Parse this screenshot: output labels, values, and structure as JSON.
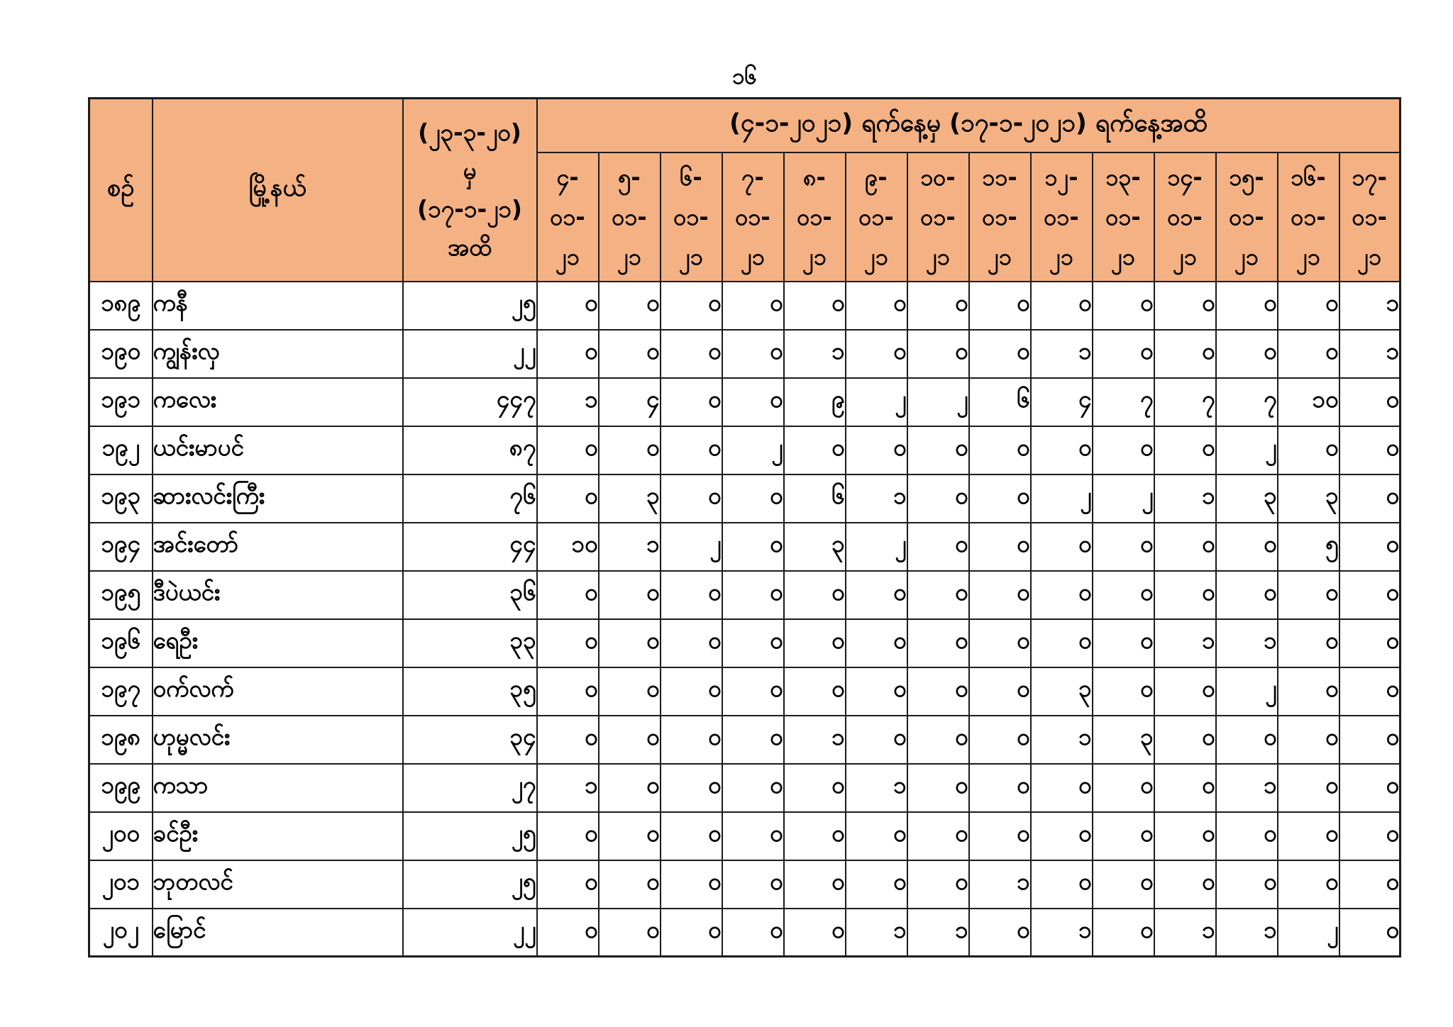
{
  "page": {
    "number": "၁၆"
  },
  "table": {
    "colors": {
      "header_fill": "#F4B183",
      "border": "#1B1B1B",
      "text": "#000000"
    },
    "header": {
      "serial_label": "စဉ်",
      "township_label": "မြို့နယ်",
      "cumulative_lines": [
        "(၂၃-၃-၂၀)",
        "မှ",
        "(၁၇-၁-၂၁)",
        "အထိ"
      ],
      "period_title": "(၄-၁-၂၀၂၁) ရက်နေ့မှ (၁၇-၁-၂၀၂၁) ရက်နေ့အထိ",
      "date_columns": [
        [
          "၄-",
          "၀၁-",
          "၂၁"
        ],
        [
          "၅-",
          "၀၁-",
          "၂၁"
        ],
        [
          "၆-",
          "၀၁-",
          "၂၁"
        ],
        [
          "၇-",
          "၀၁-",
          "၂၁"
        ],
        [
          "၈-",
          "၀၁-",
          "၂၁"
        ],
        [
          "၉-",
          "၀၁-",
          "၂၁"
        ],
        [
          "၁၀-",
          "၀၁-",
          "၂၁"
        ],
        [
          "၁၁-",
          "၀၁-",
          "၂၁"
        ],
        [
          "၁၂-",
          "၀၁-",
          "၂၁"
        ],
        [
          "၁၃-",
          "၀၁-",
          "၂၁"
        ],
        [
          "၁၄-",
          "၀၁-",
          "၂၁"
        ],
        [
          "၁၅-",
          "၀၁-",
          "၂၁"
        ],
        [
          "၁၆-",
          "၀၁-",
          "၂၁"
        ],
        [
          "၁၇-",
          "၀၁-",
          "၂၁"
        ]
      ]
    },
    "rows": [
      {
        "serial": "၁၈၉",
        "township": "ကနီ",
        "cumulative": "၂၅",
        "daily": [
          "၀",
          "၀",
          "၀",
          "၀",
          "၀",
          "၀",
          "၀",
          "၀",
          "၀",
          "၀",
          "၀",
          "၀",
          "၀",
          "၁"
        ]
      },
      {
        "serial": "၁၉၀",
        "township": "ကျွန်းလှ",
        "cumulative": "၂၂",
        "daily": [
          "၀",
          "၀",
          "၀",
          "၀",
          "၁",
          "၀",
          "၀",
          "၀",
          "၁",
          "၀",
          "၀",
          "၀",
          "၀",
          "၁"
        ]
      },
      {
        "serial": "၁၉၁",
        "township": "ကလေး",
        "cumulative": "၄၄၇",
        "daily": [
          "၁",
          "၄",
          "၀",
          "၀",
          "၉",
          "၂",
          "၂",
          "၆",
          "၄",
          "၇",
          "၇",
          "၇",
          "၁၀",
          "၀"
        ]
      },
      {
        "serial": "၁၉၂",
        "township": "ယင်းမာပင်",
        "cumulative": "၈၇",
        "daily": [
          "၀",
          "၀",
          "၀",
          "၂",
          "၀",
          "၀",
          "၀",
          "၀",
          "၀",
          "၀",
          "၀",
          "၂",
          "၀",
          "၀"
        ]
      },
      {
        "serial": "၁၉၃",
        "township": "ဆားလင်းကြီး",
        "cumulative": "၇၆",
        "daily": [
          "၀",
          "၃",
          "၀",
          "၀",
          "၆",
          "၁",
          "၀",
          "၀",
          "၂",
          "၂",
          "၁",
          "၃",
          "၃",
          "၀"
        ]
      },
      {
        "serial": "၁၉၄",
        "township": "အင်းတော်",
        "cumulative": "၄၄",
        "daily": [
          "၁၀",
          "၁",
          "၂",
          "၀",
          "၃",
          "၂",
          "၀",
          "၀",
          "၀",
          "၀",
          "၀",
          "၀",
          "၅",
          "၀"
        ]
      },
      {
        "serial": "၁၉၅",
        "township": "ဒီပဲယင်း",
        "cumulative": "၃၆",
        "daily": [
          "၀",
          "၀",
          "၀",
          "၀",
          "၀",
          "၀",
          "၀",
          "၀",
          "၀",
          "၀",
          "၀",
          "၀",
          "၀",
          "၀"
        ]
      },
      {
        "serial": "၁၉၆",
        "township": "ရေဦး",
        "cumulative": "၃၃",
        "daily": [
          "၀",
          "၀",
          "၀",
          "၀",
          "၀",
          "၀",
          "၀",
          "၀",
          "၀",
          "၀",
          "၁",
          "၁",
          "၀",
          "၀"
        ]
      },
      {
        "serial": "၁၉၇",
        "township": "ဝက်လက်",
        "cumulative": "၃၅",
        "daily": [
          "၀",
          "၀",
          "၀",
          "၀",
          "၀",
          "၀",
          "၀",
          "၀",
          "၃",
          "၀",
          "၀",
          "၂",
          "၀",
          "၀"
        ]
      },
      {
        "serial": "၁၉၈",
        "township": "ဟုမ္မလင်း",
        "cumulative": "၃၄",
        "daily": [
          "၀",
          "၀",
          "၀",
          "၀",
          "၁",
          "၀",
          "၀",
          "၀",
          "၁",
          "၃",
          "၀",
          "၀",
          "၀",
          "၀"
        ]
      },
      {
        "serial": "၁၉၉",
        "township": "ကသာ",
        "cumulative": "၂၇",
        "daily": [
          "၁",
          "၀",
          "၀",
          "၀",
          "၀",
          "၁",
          "၀",
          "၀",
          "၀",
          "၀",
          "၀",
          "၁",
          "၀",
          "၀"
        ]
      },
      {
        "serial": "၂၀၀",
        "township": "ခင်ဦး",
        "cumulative": "၂၅",
        "daily": [
          "၀",
          "၀",
          "၀",
          "၀",
          "၀",
          "၀",
          "၀",
          "၀",
          "၀",
          "၀",
          "၀",
          "၀",
          "၀",
          "၀"
        ]
      },
      {
        "serial": "၂၀၁",
        "township": "ဘုတလင်",
        "cumulative": "၂၅",
        "daily": [
          "၀",
          "၀",
          "၀",
          "၀",
          "၀",
          "၀",
          "၀",
          "၁",
          "၀",
          "၀",
          "၀",
          "၀",
          "၀",
          "၀"
        ]
      },
      {
        "serial": "၂၀၂",
        "township": "မြောင်",
        "cumulative": "၂၂",
        "daily": [
          "၀",
          "၀",
          "၀",
          "၀",
          "၀",
          "၁",
          "၁",
          "၀",
          "၁",
          "၀",
          "၁",
          "၁",
          "၂",
          "၀"
        ]
      }
    ]
  }
}
